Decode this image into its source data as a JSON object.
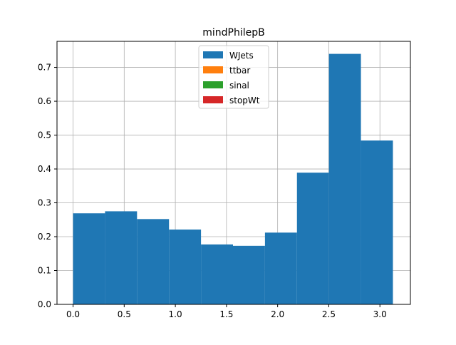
{
  "chart_data": {
    "type": "bar",
    "title": "mindPhilepB",
    "xlabel": "",
    "ylabel": "",
    "xlim": [
      -0.157,
      3.298
    ],
    "ylim": [
      0.0,
      0.777
    ],
    "xticks": [
      0.0,
      0.5,
      1.0,
      1.5,
      2.0,
      2.5,
      3.0
    ],
    "xtick_labels": [
      "0.0",
      "0.5",
      "1.0",
      "1.5",
      "2.0",
      "2.5",
      "3.0"
    ],
    "yticks": [
      0.0,
      0.1,
      0.2,
      0.3,
      0.4,
      0.5,
      0.6,
      0.7
    ],
    "ytick_labels": [
      "0.0",
      "0.1",
      "0.2",
      "0.3",
      "0.4",
      "0.5",
      "0.6",
      "0.7"
    ],
    "grid": true,
    "legend_position": "top-center",
    "series": [
      {
        "name": "WJets",
        "color": "#1f77b4",
        "bin_edges": [
          0.0,
          0.3127,
          0.6254,
          0.9381,
          1.2508,
          1.5635,
          1.8762,
          2.1889,
          2.5016,
          2.8143,
          3.127
        ],
        "values": [
          0.269,
          0.275,
          0.252,
          0.221,
          0.177,
          0.173,
          0.212,
          0.389,
          0.74,
          0.484
        ]
      },
      {
        "name": "ttbar",
        "color": "#ff7f0e",
        "values": []
      },
      {
        "name": "sinal",
        "color": "#2ca02c",
        "values": []
      },
      {
        "name": "stopWt",
        "color": "#d62728",
        "values": []
      }
    ]
  }
}
